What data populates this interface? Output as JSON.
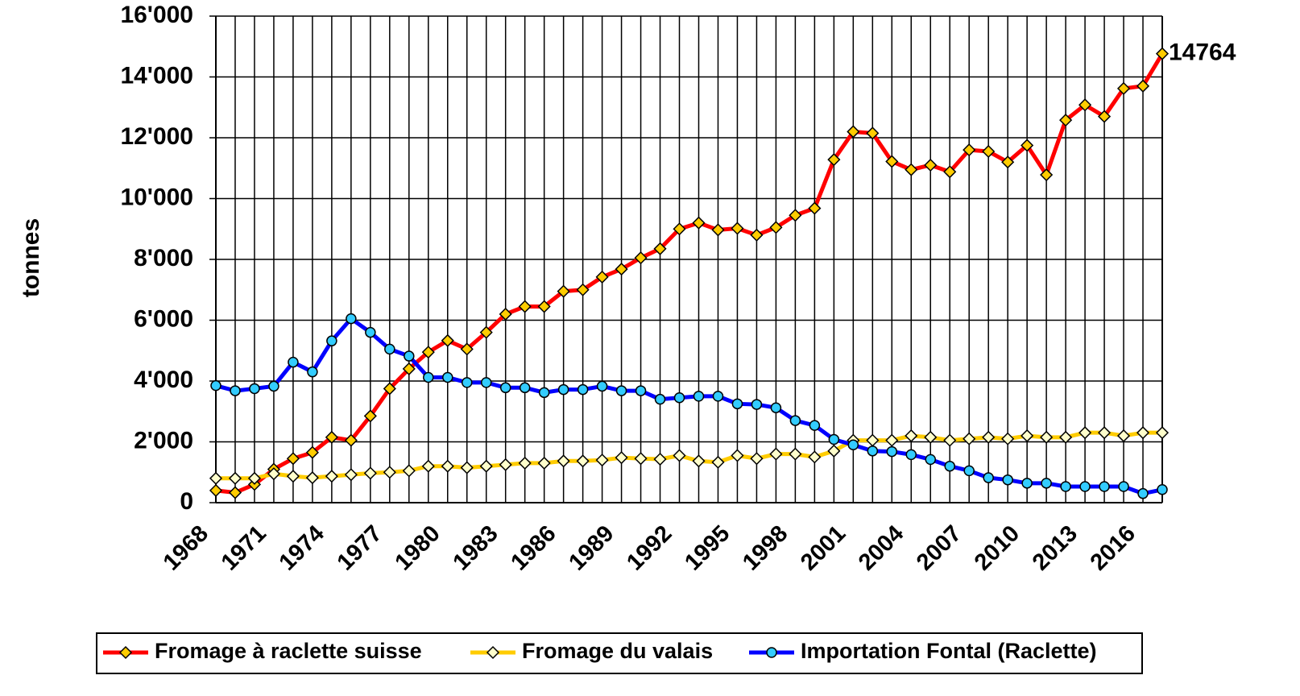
{
  "chart_data": {
    "type": "line",
    "y_label": "tonnes",
    "categories": [
      "1968",
      null,
      null,
      "1971",
      null,
      null,
      "1974",
      null,
      null,
      "1977",
      null,
      null,
      "1980",
      null,
      null,
      "1983",
      null,
      null,
      "1986",
      null,
      null,
      "1989",
      null,
      null,
      "1992",
      null,
      null,
      "1995",
      null,
      null,
      "1998",
      null,
      null,
      "2001",
      null,
      null,
      "2004",
      null,
      null,
      "2007",
      null,
      null,
      "2010",
      null,
      null,
      "2013",
      null,
      null,
      "2016",
      null
    ],
    "series": [
      {
        "name": "Fromage à raclette suisse",
        "color": "#ff0000",
        "marker": "diamond",
        "marker_color": "#ffcc00",
        "values": [
          400,
          330,
          600,
          1100,
          1450,
          1650,
          2150,
          2050,
          2850,
          3750,
          4400,
          4950,
          5330,
          5050,
          5600,
          6200,
          6450,
          6450,
          6950,
          7000,
          7420,
          7680,
          8050,
          8350,
          9000,
          9200,
          8970,
          9020,
          8800,
          9050,
          9450,
          9680,
          11280,
          12200,
          12150,
          11220,
          10950,
          11100,
          10880,
          11600,
          11550,
          11200,
          11750,
          10780,
          12580,
          13080,
          12700,
          13620,
          13700,
          14764
        ]
      },
      {
        "name": "Fromage du valais",
        "color": "#ffcc00",
        "marker": "diamond",
        "marker_color": "#ffffcc",
        "values": [
          800,
          800,
          800,
          950,
          870,
          820,
          870,
          920,
          970,
          1000,
          1050,
          1200,
          1200,
          1150,
          1200,
          1250,
          1300,
          1300,
          1370,
          1370,
          1400,
          1480,
          1450,
          1430,
          1550,
          1370,
          1330,
          1550,
          1450,
          1600,
          1600,
          1500,
          1700,
          2050,
          2050,
          2050,
          2200,
          2150,
          2050,
          2100,
          2150,
          2100,
          2200,
          2150,
          2150,
          2300,
          2300,
          2200,
          2300,
          2300
        ]
      },
      {
        "name": "Importation Fontal (Raclette)",
        "color": "#0000ff",
        "marker": "circle",
        "marker_color": "#33ccff",
        "values": [
          3850,
          3680,
          3750,
          3830,
          4620,
          4300,
          5320,
          6050,
          5600,
          5050,
          4820,
          4120,
          4120,
          3950,
          3950,
          3780,
          3780,
          3620,
          3720,
          3720,
          3830,
          3680,
          3680,
          3400,
          3450,
          3500,
          3500,
          3250,
          3230,
          3120,
          2700,
          2540,
          2080,
          1900,
          1700,
          1680,
          1580,
          1420,
          1200,
          1050,
          820,
          750,
          640,
          640,
          530,
          530,
          530,
          530,
          300,
          430
        ]
      }
    ],
    "ylim": [
      0,
      16000
    ],
    "yticks": [
      0,
      {
        "value": 2000,
        "label": "2'000"
      },
      {
        "value": 4000,
        "label": "4'000"
      },
      {
        "value": 6000,
        "label": "6'000"
      },
      {
        "value": 8000,
        "label": "8'000"
      },
      {
        "value": 10000,
        "label": "10'000"
      },
      {
        "value": 12000,
        "label": "12'000"
      },
      {
        "value": 14000,
        "label": "14'000"
      },
      {
        "value": 16000,
        "label": "16'000"
      }
    ],
    "grid": true,
    "legend": "bottom"
  }
}
